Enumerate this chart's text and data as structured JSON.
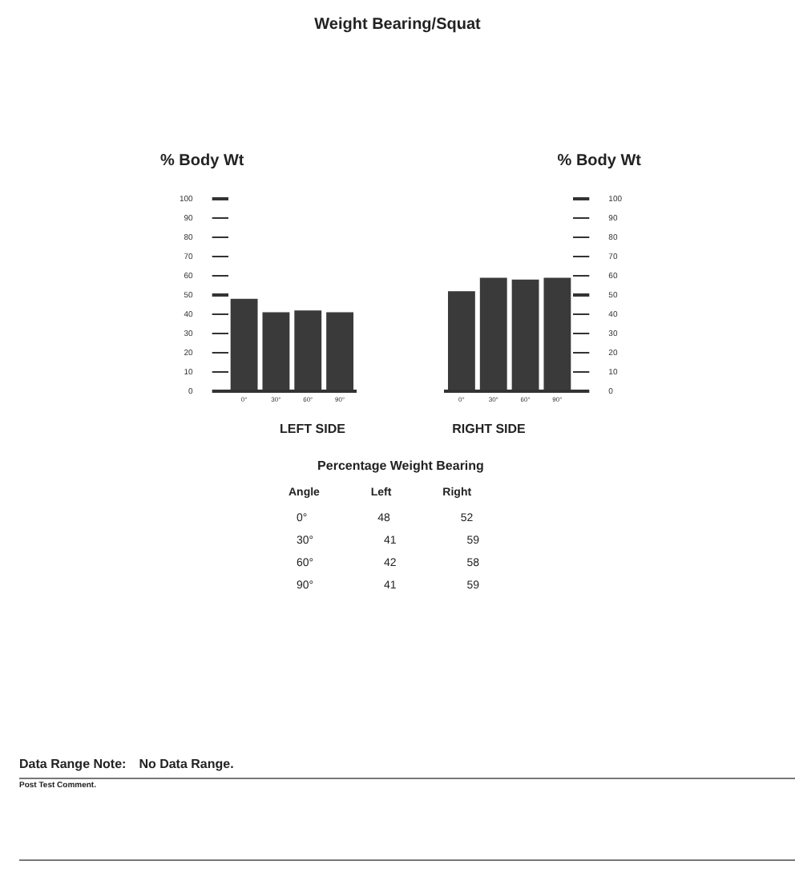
{
  "chart_data": [
    {
      "type": "bar",
      "title": "Weight Bearing/Squat",
      "ylabel": "% Body Wt",
      "xlabel": "LEFT SIDE",
      "categories": [
        "0°",
        "30°",
        "60°",
        "90°"
      ],
      "values": [
        48,
        41,
        42,
        41
      ],
      "color": "#3a3a3a",
      "ylim": [
        0,
        100
      ],
      "yticks": [
        0,
        10,
        20,
        30,
        40,
        50,
        60,
        70,
        80,
        90,
        100
      ],
      "grid": false,
      "legend": false
    },
    {
      "type": "bar",
      "ylabel": "% Body Wt",
      "xlabel": "RIGHT SIDE",
      "categories": [
        "0°",
        "30°",
        "60°",
        "90°"
      ],
      "values": [
        52,
        59,
        58,
        59
      ],
      "color": "#3a3a3a",
      "ylim": [
        0,
        100
      ],
      "yticks": [
        0,
        10,
        20,
        30,
        40,
        50,
        60,
        70,
        80,
        90,
        100
      ],
      "grid": false,
      "legend": false
    },
    {
      "type": "other",
      "title": "Percentage Weight Bearing",
      "annotations": [
        "Angle",
        "Left",
        "Right",
        "0°",
        "48",
        "52",
        "30°",
        "41",
        "59",
        "60°",
        "42",
        "58",
        "90°",
        "41",
        "59",
        "Data Range Note:",
        "No Data Range.",
        "Post Test Comment."
      ]
    }
  ]
}
